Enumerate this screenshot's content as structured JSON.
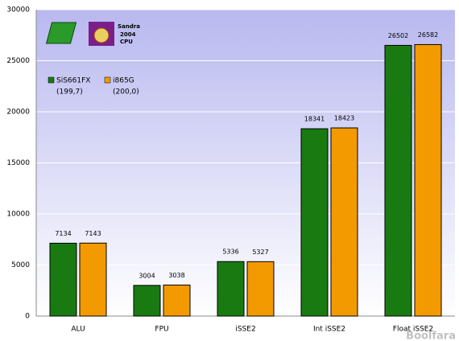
{
  "chart_data": {
    "type": "bar",
    "categories": [
      "ALU",
      "FPU",
      "iSSE2",
      "Int iSSE2",
      "Float iSSE2"
    ],
    "series": [
      {
        "name": "SiS661FX",
        "note": "(199,7)",
        "color": "#1a7a12",
        "values": [
          7134,
          3004,
          5336,
          18341,
          26502
        ]
      },
      {
        "name": "i865G",
        "note": "(200,0)",
        "color": "#f39a00",
        "values": [
          7143,
          3038,
          5327,
          18423,
          26582
        ]
      }
    ],
    "ylim": [
      0,
      30000
    ],
    "yticks": [
      0,
      5000,
      10000,
      15000,
      20000,
      25000,
      30000
    ],
    "grid": true,
    "logo_text": [
      "Sandra",
      "2004",
      "CPU"
    ],
    "watermark": "Boolfara"
  }
}
